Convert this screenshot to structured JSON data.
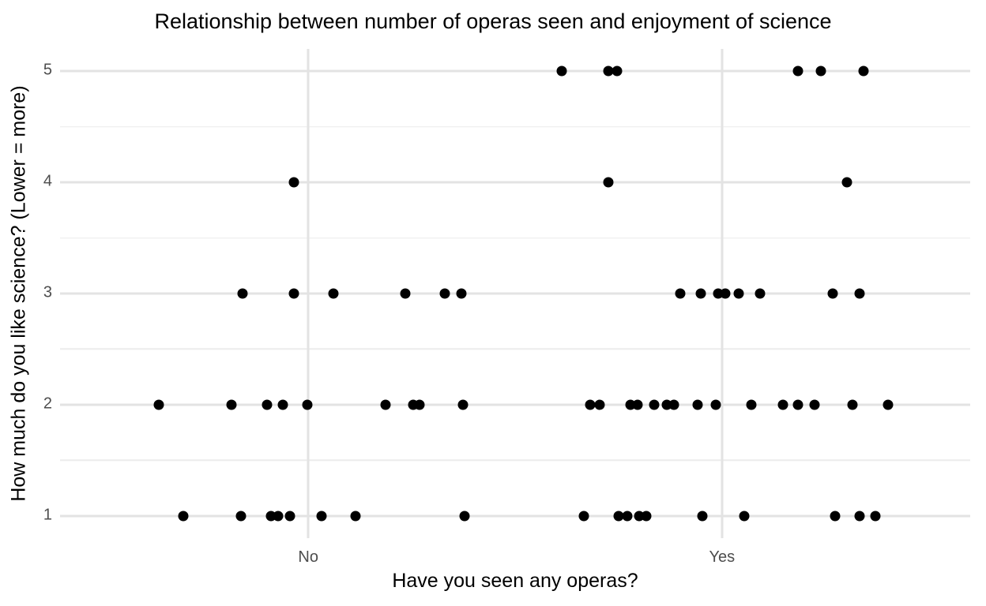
{
  "chart_data": {
    "type": "scatter",
    "jitter": "horizontal",
    "title": "Relationship between number of operas seen and enjoyment of science",
    "xlabel": "Have you seen any operas?",
    "ylabel": "How much do you like science? (Lower = more)",
    "x_categories": [
      "No",
      "Yes"
    ],
    "x_category_positions": [
      1,
      2
    ],
    "y_ticks": [
      1,
      2,
      3,
      4,
      5
    ],
    "y_minor_gridlines": [
      1.5,
      2.5,
      3.5,
      4.5
    ],
    "xlim": [
      0.4,
      2.6
    ],
    "ylim": [
      0.8,
      5.2
    ],
    "legend": "none",
    "grid": "major-xy + minor-y",
    "point_color": "#000000",
    "grid_major_color": "#e3e3e3",
    "grid_minor_color": "#ececec",
    "tick_label_color": "#4d4d4d",
    "background_color": "#ffffff",
    "counts_by_category_and_rating": {
      "No": {
        "1": 8,
        "2": 9,
        "3": 6,
        "4": 1,
        "5": 0
      },
      "Yes": {
        "1": 10,
        "2": 15,
        "3": 8,
        "4": 2,
        "5": 6
      }
    },
    "points": [
      [
        1.613,
        5
      ],
      [
        1.725,
        5
      ],
      [
        1.746,
        5
      ],
      [
        2.184,
        5
      ],
      [
        2.239,
        5
      ],
      [
        2.342,
        5
      ],
      [
        0.965,
        4
      ],
      [
        1.725,
        4
      ],
      [
        2.302,
        4
      ],
      [
        0.841,
        3
      ],
      [
        0.965,
        3
      ],
      [
        1.061,
        3
      ],
      [
        1.235,
        3
      ],
      [
        1.33,
        3
      ],
      [
        1.37,
        3
      ],
      [
        1.899,
        3
      ],
      [
        1.949,
        3
      ],
      [
        1.991,
        3
      ],
      [
        2.008,
        3
      ],
      [
        2.041,
        3
      ],
      [
        2.092,
        3
      ],
      [
        2.268,
        3
      ],
      [
        2.333,
        3
      ],
      [
        0.639,
        2
      ],
      [
        0.814,
        2
      ],
      [
        0.9,
        2
      ],
      [
        0.939,
        2
      ],
      [
        0.998,
        2
      ],
      [
        1.187,
        2
      ],
      [
        1.254,
        2
      ],
      [
        1.269,
        2
      ],
      [
        1.374,
        2
      ],
      [
        1.681,
        2
      ],
      [
        1.704,
        2
      ],
      [
        1.779,
        2
      ],
      [
        1.796,
        2
      ],
      [
        1.836,
        2
      ],
      [
        1.867,
        2
      ],
      [
        1.884,
        2
      ],
      [
        1.941,
        2
      ],
      [
        1.985,
        2
      ],
      [
        2.071,
        2
      ],
      [
        2.147,
        2
      ],
      [
        2.184,
        2
      ],
      [
        2.224,
        2
      ],
      [
        2.315,
        2
      ],
      [
        2.401,
        2
      ],
      [
        0.698,
        1
      ],
      [
        0.837,
        1
      ],
      [
        0.91,
        1
      ],
      [
        0.927,
        1
      ],
      [
        0.956,
        1
      ],
      [
        1.032,
        1
      ],
      [
        1.114,
        1
      ],
      [
        1.378,
        1
      ],
      [
        1.666,
        1
      ],
      [
        1.75,
        1
      ],
      [
        1.771,
        1
      ],
      [
        1.8,
        1
      ],
      [
        1.817,
        1
      ],
      [
        1.953,
        1
      ],
      [
        2.054,
        1
      ],
      [
        2.274,
        1
      ],
      [
        2.333,
        1
      ],
      [
        2.371,
        1
      ]
    ]
  }
}
